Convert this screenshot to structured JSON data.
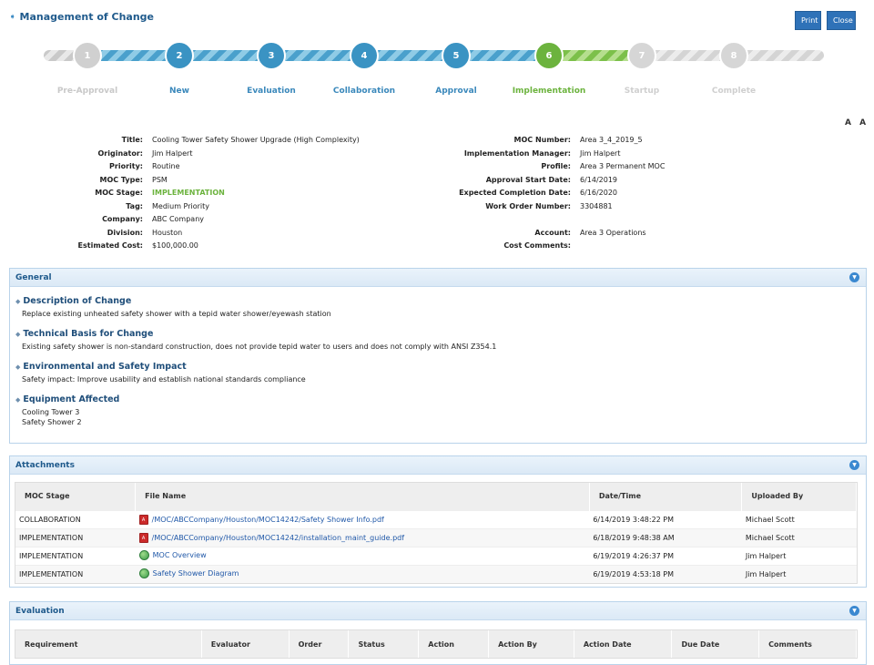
{
  "header": {
    "title": "Management of Change",
    "print_label": "Print",
    "close_label": "Close"
  },
  "steps": [
    {
      "num": "1",
      "label": "Pre-Approval",
      "state": "pre"
    },
    {
      "num": "2",
      "label": "New",
      "state": "done"
    },
    {
      "num": "3",
      "label": "Evaluation",
      "state": "done"
    },
    {
      "num": "4",
      "label": "Collaboration",
      "state": "done"
    },
    {
      "num": "5",
      "label": "Approval",
      "state": "done"
    },
    {
      "num": "6",
      "label": "Implementation",
      "state": "current"
    },
    {
      "num": "7",
      "label": "Startup",
      "state": "future"
    },
    {
      "num": "8",
      "label": "Complete",
      "state": "future"
    }
  ],
  "font_toggle": "A A",
  "details_left": [
    {
      "label": "Title:",
      "value": "Cooling Tower Safety Shower Upgrade (High Complexity)"
    },
    {
      "label": "Originator:",
      "value": "Jim Halpert"
    },
    {
      "label": "Priority:",
      "value": "Routine"
    },
    {
      "label": "MOC Type:",
      "value": "PSM"
    },
    {
      "label": "MOC Stage:",
      "value": "IMPLEMENTATION"
    },
    {
      "label": "Tag:",
      "value": "Medium Priority"
    },
    {
      "label": "Company:",
      "value": "ABC Company"
    },
    {
      "label": "Division:",
      "value": "Houston"
    },
    {
      "label": "Estimated Cost:",
      "value": "$100,000.00"
    }
  ],
  "details_right": [
    {
      "label": "MOC Number:",
      "value": "Area 3_4_2019_5"
    },
    {
      "label": "Implementation Manager:",
      "value": "Jim Halpert"
    },
    {
      "label": "Profile:",
      "value": "Area 3 Permanent MOC"
    },
    {
      "label": "Approval Start Date:",
      "value": "6/14/2019"
    },
    {
      "label": "Expected Completion Date:",
      "value": "6/16/2020"
    },
    {
      "label": "Work Order Number:",
      "value": "3304881"
    },
    {
      "label": "",
      "value": ""
    },
    {
      "label": "Account:",
      "value": "Area 3 Operations"
    },
    {
      "label": "Cost Comments:",
      "value": ""
    }
  ],
  "general": {
    "title": "General",
    "sections": [
      {
        "title": "Description of Change",
        "body": [
          "Replace existing unheated safety shower with a tepid water shower/eyewash station"
        ]
      },
      {
        "title": "Technical Basis for Change",
        "body": [
          "Existing safety shower is non-standard construction, does not provide tepid water to users and does not comply with ANSI Z354.1"
        ]
      },
      {
        "title": "Environmental and Safety Impact",
        "body": [
          "Safety impact: Improve usability and establish national standards compliance"
        ]
      },
      {
        "title": "Equipment Affected",
        "body": [
          "Cooling Tower 3",
          "Safety Shower 2"
        ]
      }
    ]
  },
  "attachments": {
    "title": "Attachments",
    "columns": [
      "MOC Stage",
      "File Name",
      "Date/Time",
      "Uploaded By"
    ],
    "rows": [
      {
        "stage": "COLLABORATION",
        "file": "/MOC/ABCCompany/Houston/MOC14242/Safety Shower Info.pdf",
        "icon": "pdf-icon",
        "date": "6/14/2019 3:48:22 PM",
        "by": "Michael Scott"
      },
      {
        "stage": "IMPLEMENTATION",
        "file": "/MOC/ABCCompany/Houston/MOC14242/installation_maint_guide.pdf",
        "icon": "pdf-icon",
        "date": "6/18/2019 9:48:38 AM",
        "by": "Michael Scott"
      },
      {
        "stage": "IMPLEMENTATION",
        "file": "MOC Overview",
        "icon": "globe-link-icon",
        "date": "6/19/2019 4:26:37 PM",
        "by": "Jim Halpert"
      },
      {
        "stage": "IMPLEMENTATION",
        "file": "Safety Shower Diagram",
        "icon": "globe-link-icon",
        "date": "6/19/2019 4:53:18 PM",
        "by": "Jim Halpert"
      }
    ]
  },
  "evaluation": {
    "title": "Evaluation",
    "columns": [
      "Requirement",
      "Evaluator",
      "Order",
      "Status",
      "Action",
      "Action By",
      "Action Date",
      "Due Date",
      "Comments"
    ]
  },
  "colors": {
    "accent": "#2f72b8",
    "done": "#3a93c3",
    "current": "#6cb33e",
    "future": "#d6d6d6"
  }
}
